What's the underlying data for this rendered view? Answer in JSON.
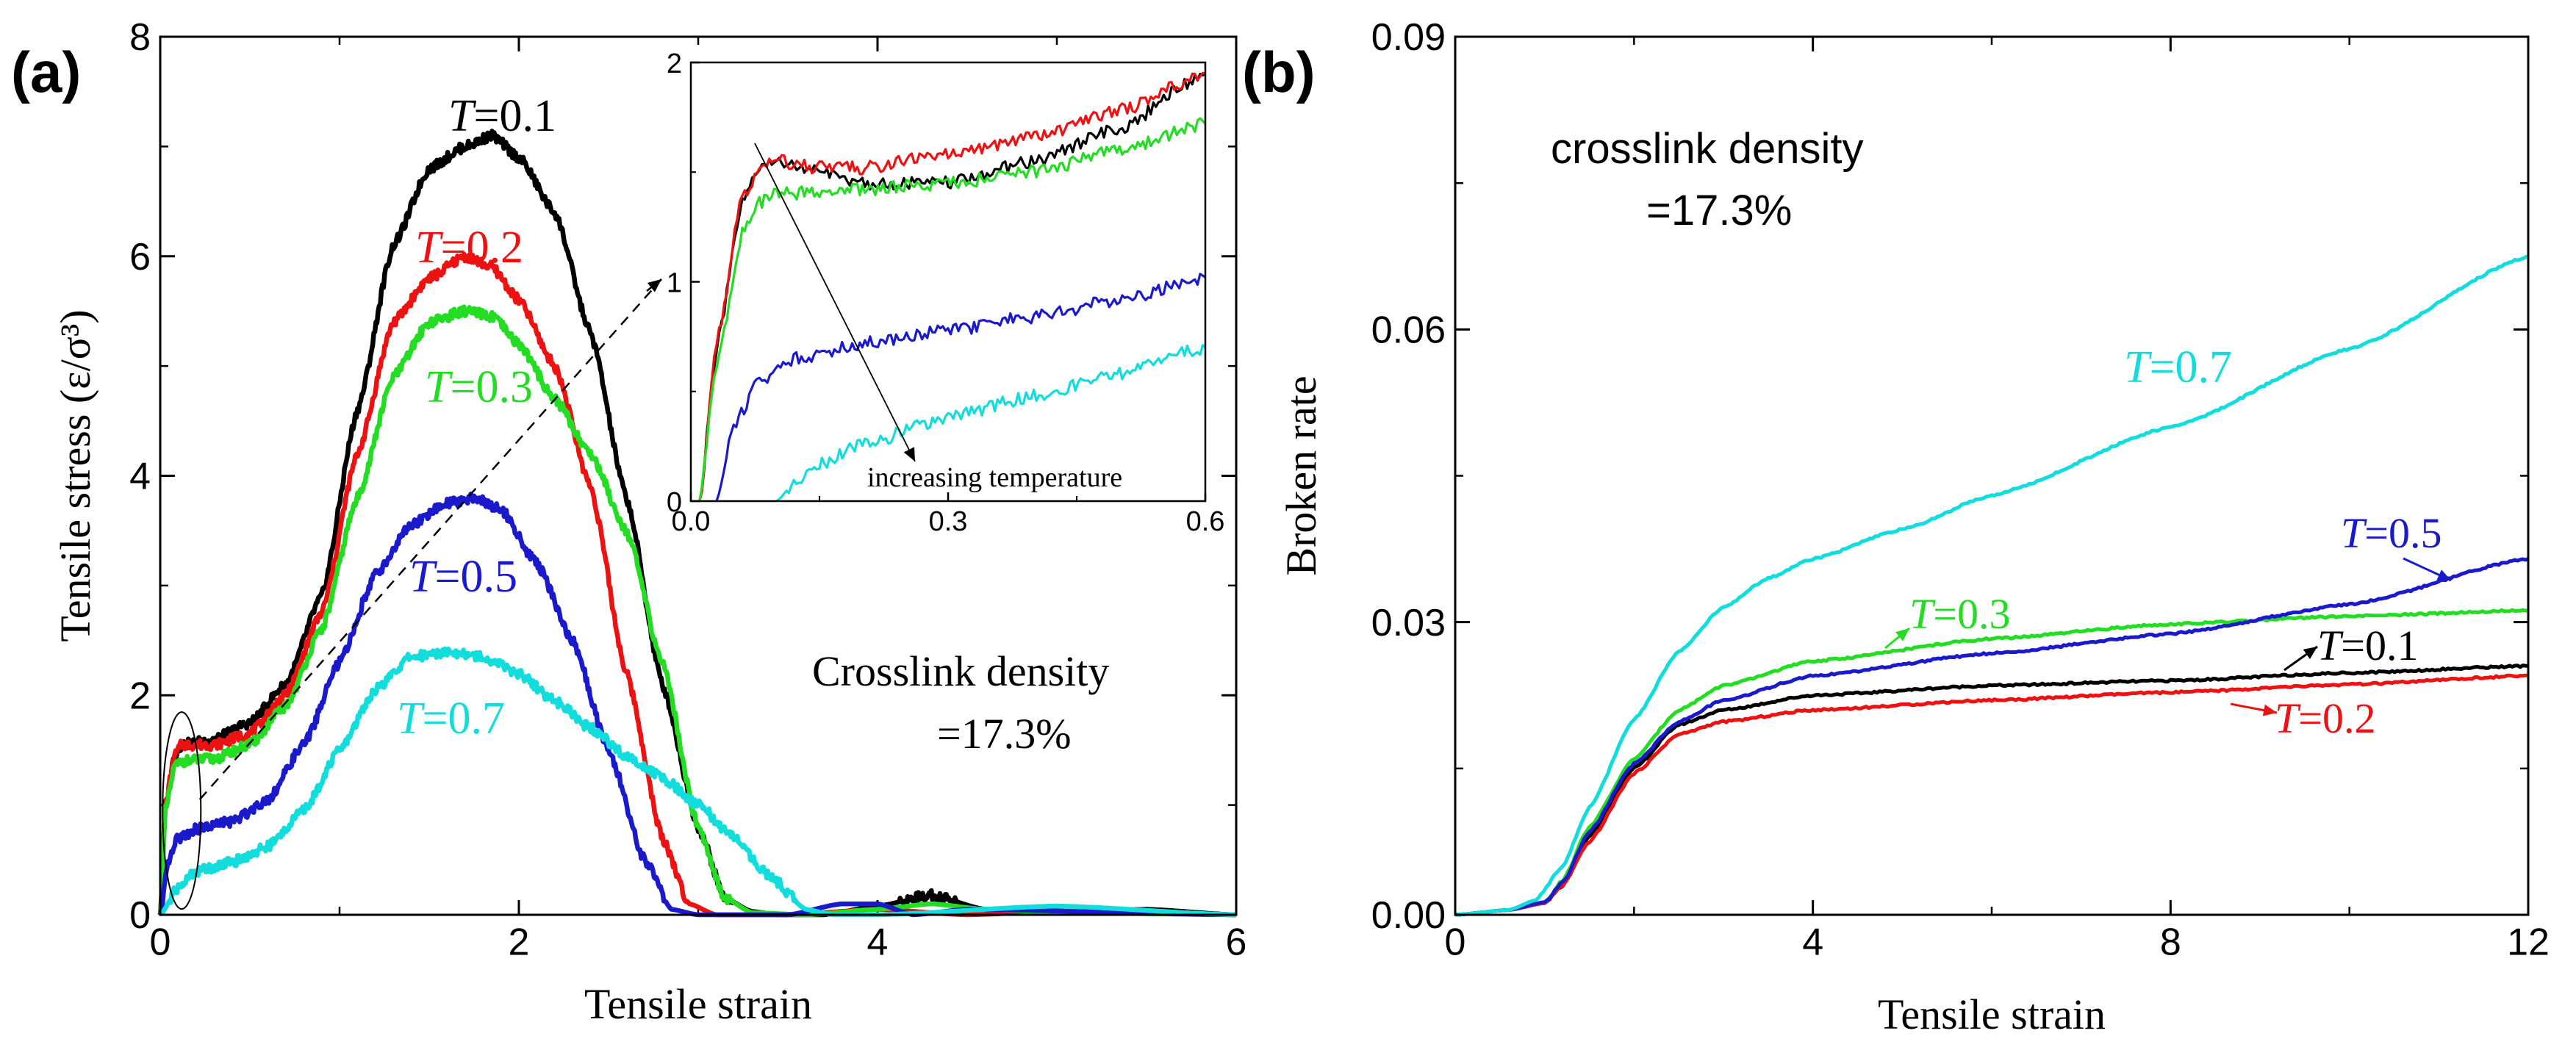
{
  "chart_data": [
    {
      "type": "line",
      "panel_label": "(a)",
      "xlabel": "Tensile strain",
      "ylabel": "Tensile stress (ε/σ³)",
      "xlim": [
        0,
        6
      ],
      "ylim": [
        0,
        8
      ],
      "xticks": [
        "0",
        "2",
        "4",
        "6"
      ],
      "yticks": [
        "0",
        "2",
        "4",
        "6",
        "8"
      ],
      "annotation": [
        "Crosslink density",
        "=17.3%"
      ],
      "series": [
        {
          "name": "T=0.1",
          "label_var": "T",
          "label_val": "=0.1",
          "color": "#000000",
          "x": [
            0,
            0.03,
            0.08,
            0.12,
            0.3,
            0.5,
            0.7,
            0.9,
            1.1,
            1.3,
            1.5,
            1.7,
            1.85,
            2.0,
            2.2,
            2.4,
            2.6,
            2.8,
            3.0,
            3.15,
            3.3,
            3.45,
            3.7,
            4.0,
            4.3,
            4.6,
            5.0,
            5.5,
            6.0
          ],
          "y": [
            0,
            1.0,
            1.45,
            1.55,
            1.6,
            1.75,
            2.1,
            2.9,
            4.6,
            6.1,
            6.8,
            7.0,
            7.1,
            6.9,
            6.4,
            5.3,
            3.8,
            2.1,
            0.8,
            0.15,
            0.03,
            0.0,
            0.0,
            0.08,
            0.18,
            0.05,
            0.02,
            0.05,
            0.0
          ]
        },
        {
          "name": "T=0.2",
          "label_var": "T",
          "label_val": "=0.2",
          "color": "#ee1111",
          "x": [
            0,
            0.03,
            0.08,
            0.12,
            0.3,
            0.5,
            0.7,
            0.9,
            1.1,
            1.3,
            1.5,
            1.7,
            1.85,
            2.0,
            2.2,
            2.4,
            2.6,
            2.8,
            2.95,
            3.1,
            3.5,
            4.0,
            4.5,
            5.0,
            6.0
          ],
          "y": [
            0,
            1.0,
            1.45,
            1.55,
            1.55,
            1.65,
            2.0,
            2.75,
            4.2,
            5.4,
            5.8,
            6.0,
            5.9,
            5.6,
            5.0,
            3.9,
            2.2,
            0.7,
            0.1,
            0.0,
            0.0,
            0.05,
            0.0,
            0.03,
            0.0
          ]
        },
        {
          "name": "T=0.3",
          "label_var": "T",
          "label_val": "=0.3",
          "color": "#22dd22",
          "x": [
            0,
            0.03,
            0.08,
            0.12,
            0.3,
            0.5,
            0.7,
            0.9,
            1.1,
            1.3,
            1.5,
            1.7,
            1.85,
            2.0,
            2.2,
            2.4,
            2.6,
            2.8,
            3.0,
            3.15,
            3.3,
            3.6,
            4.0,
            4.3,
            4.6,
            5.0,
            6.0
          ],
          "y": [
            0,
            0.95,
            1.35,
            1.4,
            1.42,
            1.55,
            1.9,
            2.6,
            3.8,
            4.9,
            5.4,
            5.5,
            5.45,
            5.2,
            4.7,
            4.2,
            3.5,
            2.3,
            0.8,
            0.15,
            0.02,
            0.0,
            0.05,
            0.1,
            0.05,
            0.02,
            0.0
          ]
        },
        {
          "name": "T=0.5",
          "label_var": "T",
          "label_val": "=0.5",
          "color": "#1a1acc",
          "x": [
            0,
            0.05,
            0.1,
            0.2,
            0.4,
            0.6,
            0.8,
            1.0,
            1.2,
            1.4,
            1.6,
            1.75,
            1.9,
            2.1,
            2.3,
            2.5,
            2.7,
            2.85,
            3.0,
            3.5,
            3.8,
            4.0,
            4.2,
            4.5,
            6.0
          ],
          "y": [
            0,
            0.5,
            0.7,
            0.78,
            0.85,
            1.05,
            1.55,
            2.3,
            3.1,
            3.55,
            3.75,
            3.8,
            3.7,
            3.2,
            2.5,
            1.5,
            0.5,
            0.05,
            0.0,
            0.0,
            0.1,
            0.1,
            0.0,
            0.05,
            0.0
          ]
        },
        {
          "name": "T=0.7",
          "label_var": "T",
          "label_val": "=0.7",
          "color": "#11dddd",
          "x": [
            0,
            0.1,
            0.2,
            0.4,
            0.6,
            0.8,
            1.0,
            1.2,
            1.4,
            1.6,
            1.8,
            2.0,
            2.2,
            2.4,
            2.6,
            2.8,
            3.0,
            3.2,
            3.4,
            3.6,
            3.75,
            4.0,
            5.0,
            6.0
          ],
          "y": [
            0,
            0.25,
            0.4,
            0.48,
            0.62,
            0.95,
            1.5,
            2.05,
            2.35,
            2.4,
            2.35,
            2.2,
            1.95,
            1.7,
            1.45,
            1.25,
            1.0,
            0.7,
            0.35,
            0.05,
            0.0,
            0.0,
            0.08,
            0.0
          ]
        }
      ],
      "inset": {
        "xlim": [
          0,
          0.6
        ],
        "ylim": [
          0,
          2
        ],
        "xticks": [
          "0.0",
          "0.3",
          "0.6"
        ],
        "yticks": [
          "0",
          "1",
          "2"
        ],
        "annotation": "increasing temperature",
        "series": [
          {
            "name": "T=0.1",
            "color": "#000000",
            "x": [
              0.01,
              0.03,
              0.06,
              0.08,
              0.1,
              0.15,
              0.2,
              0.3,
              0.4,
              0.5,
              0.6
            ],
            "y": [
              0,
              0.7,
              1.35,
              1.52,
              1.55,
              1.5,
              1.45,
              1.45,
              1.55,
              1.7,
              1.95
            ]
          },
          {
            "name": "T=0.2",
            "color": "#ee1111",
            "x": [
              0.01,
              0.03,
              0.06,
              0.08,
              0.1,
              0.15,
              0.2,
              0.3,
              0.4,
              0.5,
              0.6
            ],
            "y": [
              0,
              0.72,
              1.38,
              1.52,
              1.55,
              1.52,
              1.52,
              1.58,
              1.66,
              1.78,
              1.95
            ]
          },
          {
            "name": "T=0.3",
            "color": "#22dd22",
            "x": [
              0.01,
              0.03,
              0.06,
              0.08,
              0.1,
              0.15,
              0.2,
              0.3,
              0.4,
              0.5,
              0.6
            ],
            "y": [
              0,
              0.62,
              1.22,
              1.36,
              1.4,
              1.41,
              1.42,
              1.45,
              1.5,
              1.6,
              1.72
            ]
          },
          {
            "name": "T=0.5",
            "color": "#1a1acc",
            "x": [
              0.03,
              0.05,
              0.08,
              0.12,
              0.2,
              0.3,
              0.4,
              0.5,
              0.6
            ],
            "y": [
              0,
              0.35,
              0.55,
              0.65,
              0.72,
              0.78,
              0.84,
              0.92,
              1.02
            ]
          },
          {
            "name": "T=0.7",
            "color": "#11dddd",
            "x": [
              0.1,
              0.12,
              0.15,
              0.2,
              0.3,
              0.4,
              0.5,
              0.6
            ],
            "y": [
              0,
              0.08,
              0.17,
              0.26,
              0.38,
              0.48,
              0.58,
              0.7
            ]
          }
        ]
      }
    },
    {
      "type": "line",
      "panel_label": "(b)",
      "xlabel": "Tensile strain",
      "ylabel": "Broken rate",
      "xlim": [
        0,
        12
      ],
      "ylim": [
        0,
        0.09
      ],
      "xticks": [
        "0",
        "4",
        "8",
        "12"
      ],
      "yticks": [
        "0.00",
        "0.03",
        "0.06",
        "0.09"
      ],
      "annotation": [
        "crosslink density",
        "=17.3%"
      ],
      "series": [
        {
          "name": "T=0.1",
          "label_var": "T",
          "label_val": "=0.1",
          "color": "#000000",
          "x": [
            0,
            0.6,
            1.0,
            1.2,
            1.5,
            2.0,
            2.5,
            3.0,
            4.0,
            6.0,
            8.0,
            10.0,
            12.0
          ],
          "y": [
            0,
            0.0005,
            0.0012,
            0.003,
            0.008,
            0.015,
            0.0195,
            0.021,
            0.0225,
            0.0235,
            0.024,
            0.0248,
            0.0255
          ]
        },
        {
          "name": "T=0.2",
          "label_var": "T",
          "label_val": "=0.2",
          "color": "#ee1111",
          "x": [
            0,
            0.6,
            1.0,
            1.2,
            1.5,
            2.0,
            2.5,
            3.0,
            4.0,
            6.0,
            8.0,
            10.0,
            12.0
          ],
          "y": [
            0,
            0.0005,
            0.0012,
            0.003,
            0.0075,
            0.0145,
            0.0185,
            0.0198,
            0.021,
            0.022,
            0.0228,
            0.0236,
            0.0245
          ]
        },
        {
          "name": "T=0.3",
          "label_var": "T",
          "label_val": "=0.3",
          "color": "#22dd22",
          "x": [
            0,
            0.6,
            1.0,
            1.2,
            1.5,
            2.0,
            2.5,
            3.0,
            4.0,
            6.0,
            8.0,
            10.0,
            12.0
          ],
          "y": [
            0,
            0.0005,
            0.0013,
            0.0035,
            0.009,
            0.016,
            0.021,
            0.0235,
            0.026,
            0.0283,
            0.0298,
            0.0306,
            0.0312
          ]
        },
        {
          "name": "T=0.5",
          "label_var": "T",
          "label_val": "=0.5",
          "color": "#1a1acc",
          "x": [
            0,
            0.6,
            1.0,
            1.2,
            1.5,
            2.0,
            2.5,
            3.0,
            4.0,
            6.0,
            8.0,
            10.0,
            12.0
          ],
          "y": [
            0,
            0.0005,
            0.0013,
            0.0033,
            0.0085,
            0.0155,
            0.0198,
            0.022,
            0.0245,
            0.0268,
            0.0288,
            0.0318,
            0.0365
          ]
        },
        {
          "name": "T=0.7",
          "label_var": "T",
          "label_val": "=0.7",
          "color": "#11dddd",
          "x": [
            0,
            0.6,
            0.9,
            1.2,
            1.5,
            2.0,
            2.5,
            3.0,
            3.5,
            4.0,
            5.0,
            6.0,
            8.0,
            10.0,
            12.0
          ],
          "y": [
            0,
            0.0005,
            0.0015,
            0.005,
            0.011,
            0.02,
            0.027,
            0.0315,
            0.0345,
            0.0365,
            0.0395,
            0.043,
            0.05,
            0.058,
            0.0675
          ]
        }
      ]
    }
  ]
}
